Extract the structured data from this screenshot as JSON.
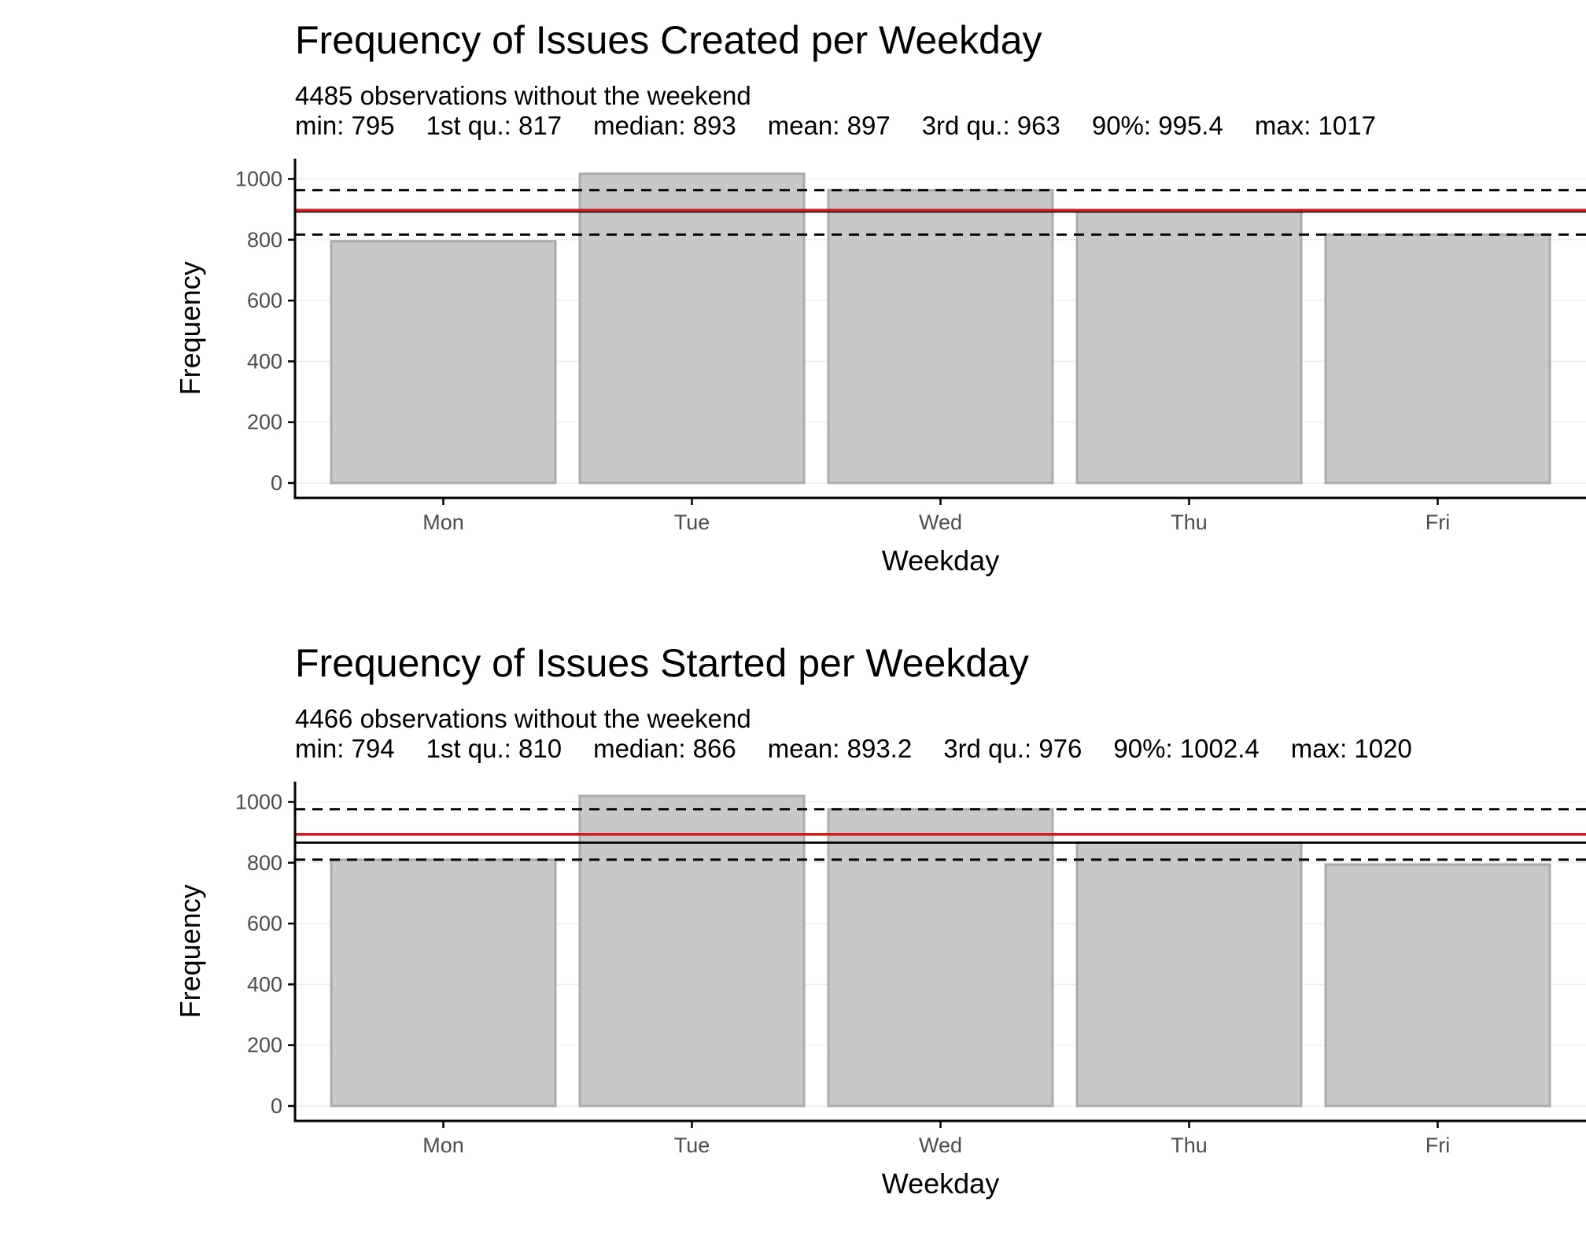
{
  "chart_data": [
    {
      "type": "bar",
      "title": "Frequency of Issues Created per Weekday",
      "subtitle": "4485 observations without the weekend",
      "stats": [
        {
          "label": "min",
          "value": "795"
        },
        {
          "label": "1st qu.",
          "value": "817"
        },
        {
          "label": "median",
          "value": "893"
        },
        {
          "label": "mean",
          "value": "897"
        },
        {
          "label": "3rd qu.",
          "value": "963"
        },
        {
          "label": "90%",
          "value": "995.4"
        },
        {
          "label": "max",
          "value": "1017"
        }
      ],
      "xlabel": "Weekday",
      "ylabel": "Frequency",
      "categories": [
        "Mon",
        "Tue",
        "Wed",
        "Thu",
        "Fri"
      ],
      "values": [
        795,
        1017,
        963,
        893,
        817
      ],
      "yticks": [
        0,
        200,
        400,
        600,
        800,
        1000
      ],
      "ylim": [
        0,
        1067
      ],
      "reference_lines": {
        "mean": 897,
        "median": 893,
        "q1": 817,
        "q3": 963
      },
      "colors": {
        "bar_fill": "#c8c8c8",
        "bar_stroke": "#ababab",
        "mean_line": "#d7191c",
        "median_line": "#000000",
        "quartile_lines": "#000000"
      }
    },
    {
      "type": "bar",
      "title": "Frequency of Issues Started per Weekday",
      "subtitle": "4466 observations without the weekend",
      "stats": [
        {
          "label": "min",
          "value": "794"
        },
        {
          "label": "1st qu.",
          "value": "810"
        },
        {
          "label": "median",
          "value": "866"
        },
        {
          "label": "mean",
          "value": "893.2"
        },
        {
          "label": "3rd qu.",
          "value": "976"
        },
        {
          "label": "90%",
          "value": "1002.4"
        },
        {
          "label": "max",
          "value": "1020"
        }
      ],
      "xlabel": "Weekday",
      "ylabel": "Frequency",
      "categories": [
        "Mon",
        "Tue",
        "Wed",
        "Thu",
        "Fri"
      ],
      "values": [
        810,
        1020,
        976,
        866,
        794
      ],
      "yticks": [
        0,
        200,
        400,
        600,
        800,
        1000
      ],
      "ylim": [
        0,
        1067
      ],
      "reference_lines": {
        "mean": 893.2,
        "median": 866,
        "q1": 810,
        "q3": 976
      },
      "colors": {
        "bar_fill": "#c8c8c8",
        "bar_stroke": "#ababab",
        "mean_line": "#d7191c",
        "median_line": "#000000",
        "quartile_lines": "#000000"
      }
    }
  ]
}
